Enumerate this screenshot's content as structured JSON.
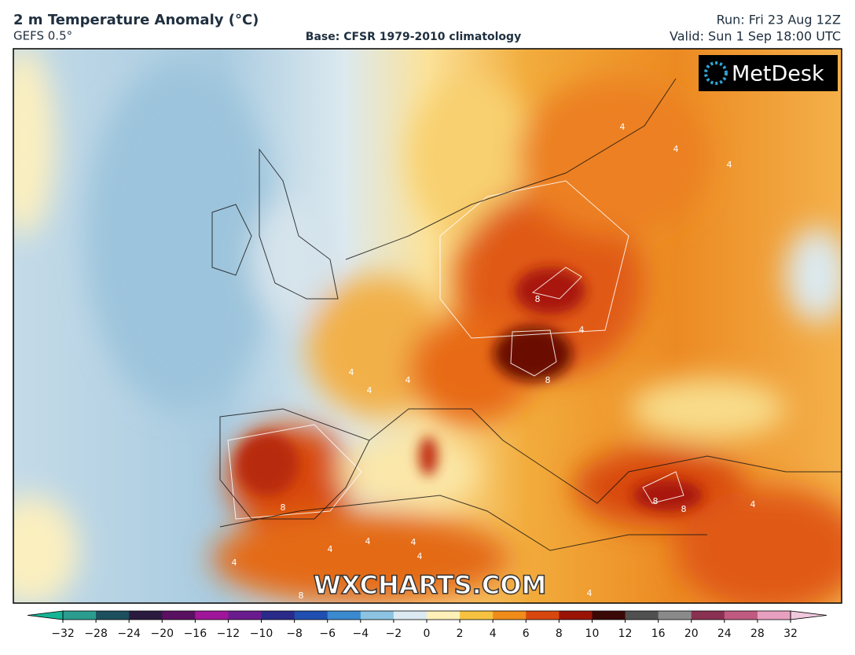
{
  "header": {
    "title": "2 m Temperature Anomaly (°C)",
    "model": "GEFS 0.5°",
    "base": "Base: CFSR 1979-2010 climatology",
    "run": "Run: Fri 23 Aug 12Z",
    "valid": "Valid: Sun 1 Sep 18:00 UTC"
  },
  "logo": "MetDesk",
  "watermark": "WXCHARTS.COM",
  "contour_labels": [
    4,
    4,
    4,
    8,
    8,
    4,
    8,
    8,
    8,
    4,
    4,
    4,
    4,
    4,
    4,
    4,
    4,
    8,
    4,
    4
  ],
  "colorbar": {
    "ticks": [
      {
        "value": -32,
        "label": "−32"
      },
      {
        "value": -28,
        "label": "−28"
      },
      {
        "value": -24,
        "label": "−24"
      },
      {
        "value": -20,
        "label": "−20"
      },
      {
        "value": -16,
        "label": "−16"
      },
      {
        "value": -12,
        "label": "−12"
      },
      {
        "value": -10,
        "label": "−10"
      },
      {
        "value": -8,
        "label": "−8"
      },
      {
        "value": -6,
        "label": "−6"
      },
      {
        "value": -4,
        "label": "−4"
      },
      {
        "value": -2,
        "label": "−2"
      },
      0,
      2,
      4,
      6,
      8,
      10,
      12,
      16,
      20,
      24,
      28,
      32
    ],
    "colors": [
      "#2a9d8f",
      "#1d4f5e",
      "#2b1a3f",
      "#5a1060",
      "#a0169a",
      "#6a1c8f",
      "#2a2a8a",
      "#1f4fb0",
      "#3a8ad0",
      "#8cc3e3",
      "#dbeaf2",
      "#fff1b8",
      "#f6c240",
      "#ef8c1a",
      "#d8480e",
      "#9a1406",
      "#3a0806",
      "#505050",
      "#8a8a8a",
      "#8a3050",
      "#c05a80",
      "#e8a0c0"
    ],
    "under_color": "#16b496",
    "over_color": "#f0c8dc"
  }
}
